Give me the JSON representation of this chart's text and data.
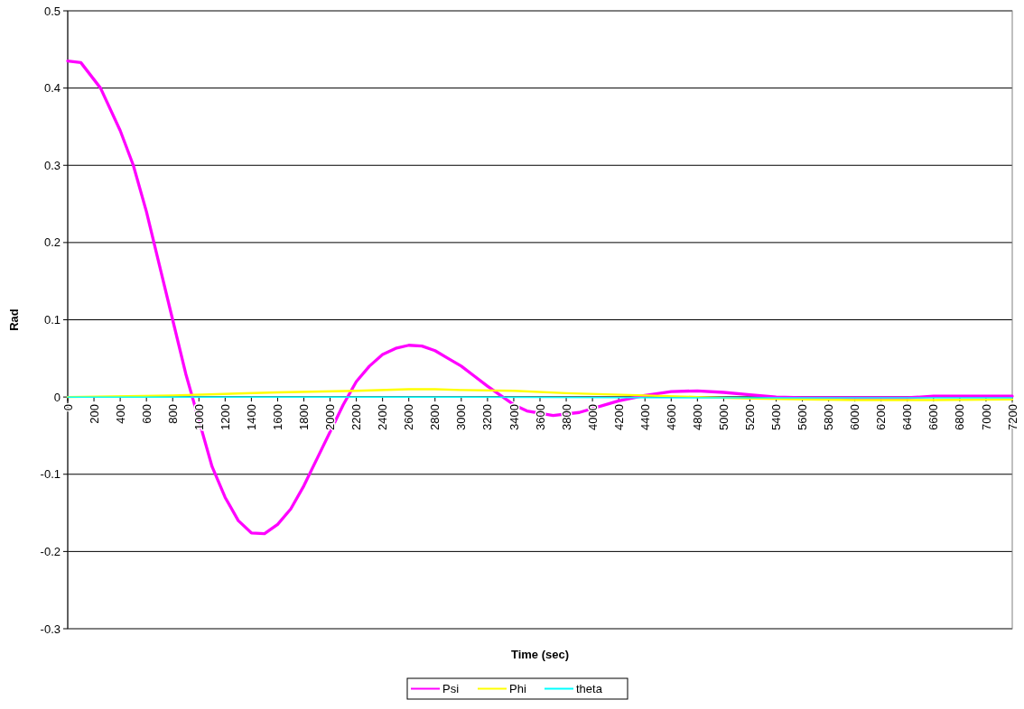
{
  "chart_data": {
    "type": "line",
    "xlabel": "Time (sec)",
    "ylabel": "Rad",
    "xlim": [
      0,
      7200
    ],
    "xticks": [
      0,
      200,
      400,
      600,
      800,
      1000,
      1200,
      1400,
      1600,
      1800,
      2000,
      2200,
      2400,
      2600,
      2800,
      3000,
      3200,
      3400,
      3600,
      3800,
      4000,
      4200,
      4400,
      4600,
      4800,
      5000,
      5200,
      5400,
      5600,
      5800,
      6000,
      6200,
      6400,
      6600,
      6800,
      7000,
      7200
    ],
    "ylim": [
      -0.3,
      0.5
    ],
    "yticks": [
      -0.3,
      -0.2,
      -0.1,
      0,
      0.1,
      0.2,
      0.3,
      0.4,
      0.5
    ],
    "grid": "y",
    "legend": "bottom",
    "marker": "none",
    "line_style": "solid",
    "series": [
      {
        "name": "Psi",
        "color": "#ff00ff",
        "x": [
          0,
          100,
          250,
          400,
          500,
          600,
          700,
          800,
          900,
          950,
          1100,
          1200,
          1300,
          1400,
          1500,
          1600,
          1700,
          1800,
          1900,
          2000,
          2100,
          2200,
          2300,
          2400,
          2500,
          2600,
          2700,
          2800,
          2900,
          3000,
          3100,
          3200,
          3300,
          3400,
          3500,
          3700,
          3900,
          4100,
          4200,
          4400,
          4600,
          4800,
          5000,
          5200,
          5400,
          5600,
          6000,
          6400,
          6600,
          7200
        ],
        "values": [
          0.435,
          0.433,
          0.4,
          0.345,
          0.3,
          0.24,
          0.17,
          0.1,
          0.03,
          0,
          -0.09,
          -0.13,
          -0.16,
          -0.176,
          -0.177,
          -0.165,
          -0.145,
          -0.115,
          -0.08,
          -0.045,
          -0.01,
          0.02,
          0.04,
          0.055,
          0.063,
          0.067,
          0.066,
          0.06,
          0.05,
          0.04,
          0.027,
          0.014,
          0.002,
          -0.01,
          -0.018,
          -0.024,
          -0.02,
          -0.01,
          -0.005,
          0.002,
          0.007,
          0.008,
          0.006,
          0.003,
          0,
          -0.001,
          -0.001,
          -0.001,
          0.001,
          0.001
        ]
      },
      {
        "name": "Phi",
        "color": "#ffff00",
        "x": [
          0,
          800,
          1600,
          2200,
          2600,
          2800,
          3000,
          3400,
          3800,
          4400,
          4800,
          5200,
          5600,
          6000,
          6600,
          7200
        ],
        "values": [
          0,
          0.002,
          0.006,
          0.008,
          0.01,
          0.01,
          0.009,
          0.008,
          0.005,
          0.002,
          0,
          -0.002,
          -0.003,
          -0.004,
          -0.004,
          -0.003
        ]
      },
      {
        "name": "theta",
        "color": "#00ffff",
        "x": [
          0,
          2400,
          4800,
          7200
        ],
        "values": [
          0,
          0,
          -0.001,
          -0.001
        ]
      }
    ]
  }
}
